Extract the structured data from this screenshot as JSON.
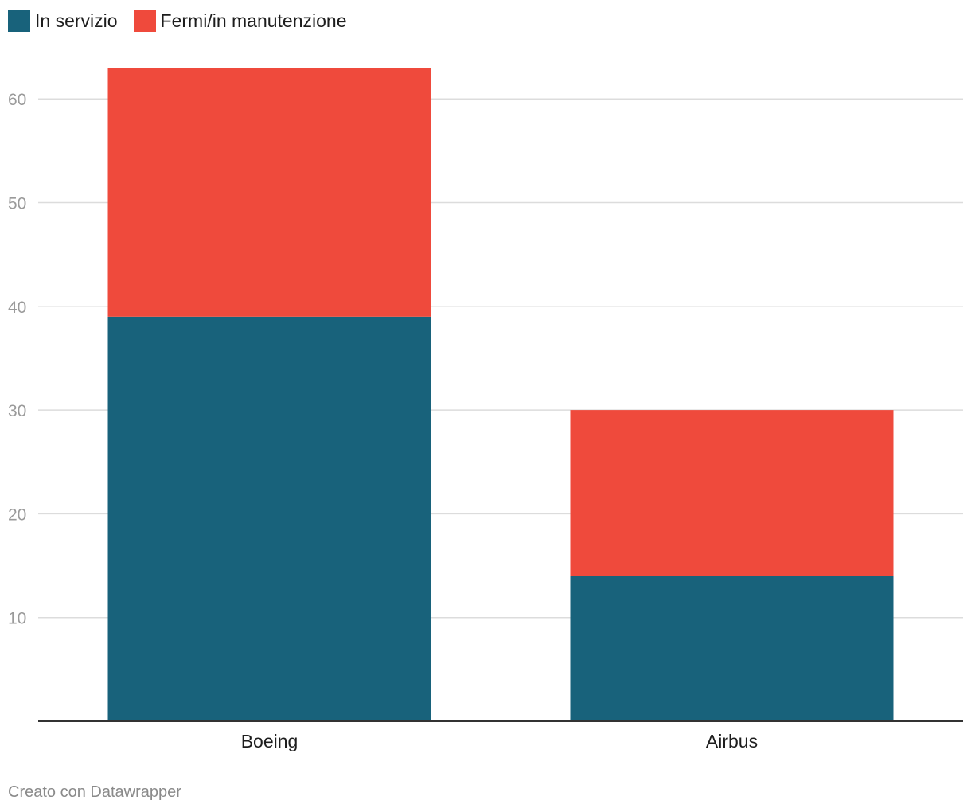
{
  "chart_data": {
    "type": "bar",
    "stacked": true,
    "categories": [
      "Boeing",
      "Airbus"
    ],
    "series": [
      {
        "name": "In servizio",
        "values": [
          39,
          14
        ],
        "color": "#18627b"
      },
      {
        "name": "Fermi/in manutenzione",
        "values": [
          24,
          16
        ],
        "color": "#ef4a3c"
      }
    ],
    "y_ticks": [
      10,
      20,
      30,
      40,
      50,
      60
    ],
    "ylim": [
      0,
      65
    ],
    "grid": true,
    "legend_position": "top-left",
    "title": "",
    "xlabel": "",
    "ylabel": ""
  },
  "legend": {
    "items": [
      {
        "label": "In servizio",
        "color": "#18627b"
      },
      {
        "label": "Fermi/in manutenzione",
        "color": "#ef4a3c"
      }
    ]
  },
  "footer": {
    "credit": "Creato con Datawrapper"
  }
}
